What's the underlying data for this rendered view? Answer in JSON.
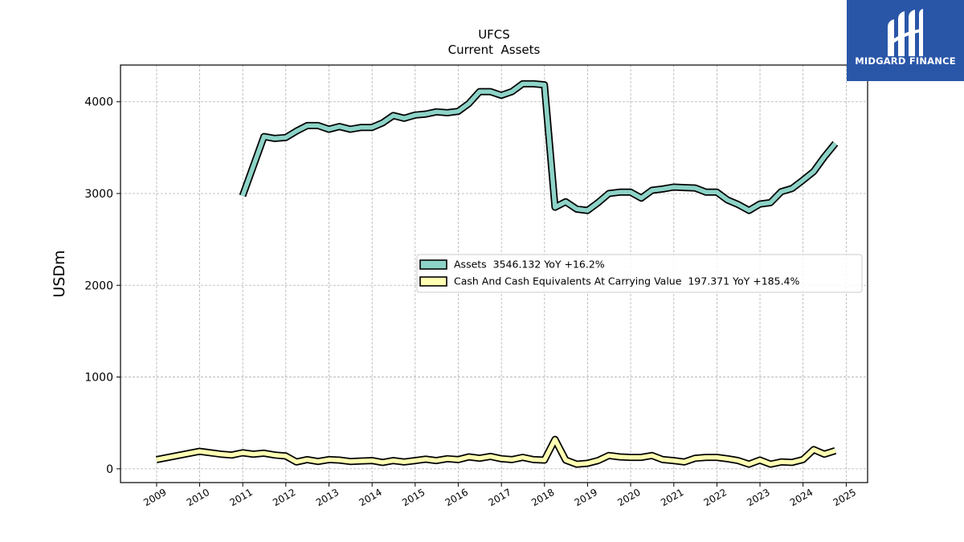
{
  "brand": {
    "name": "MIDGARD FINANCE",
    "logo_icon": "midgard-logo-icon",
    "color": "#2a56a8"
  },
  "chart_data": {
    "type": "line",
    "title": "UFCS",
    "subtitle": "Current  Assets",
    "ylabel": "USDm",
    "xlabel": "",
    "xlim": [
      "2008-03-01",
      "2025-07-01"
    ],
    "ylim": [
      -150,
      4400
    ],
    "x_ticks": [
      "2009",
      "2010",
      "2011",
      "2012",
      "2013",
      "2014",
      "2015",
      "2016",
      "2017",
      "2018",
      "2019",
      "2020",
      "2021",
      "2022",
      "2023",
      "2024",
      "2025"
    ],
    "y_ticks": [
      0,
      1000,
      2000,
      3000,
      4000
    ],
    "grid": true,
    "legend_position": "center-right",
    "series": [
      {
        "name": "Assets  3546.132 YoY +16.2%",
        "color": "#8dd3c7",
        "points": [
          [
            "2010-12-31",
            2975
          ],
          [
            "2011-06-30",
            3620
          ],
          [
            "2011-09-30",
            3600
          ],
          [
            "2011-12-31",
            3610
          ],
          [
            "2012-03-31",
            3680
          ],
          [
            "2012-06-30",
            3740
          ],
          [
            "2012-09-30",
            3740
          ],
          [
            "2012-12-31",
            3700
          ],
          [
            "2013-03-31",
            3730
          ],
          [
            "2013-06-30",
            3700
          ],
          [
            "2013-09-30",
            3720
          ],
          [
            "2013-12-31",
            3720
          ],
          [
            "2014-03-31",
            3770
          ],
          [
            "2014-06-30",
            3850
          ],
          [
            "2014-09-30",
            3820
          ],
          [
            "2014-12-31",
            3855
          ],
          [
            "2015-03-31",
            3865
          ],
          [
            "2015-06-30",
            3890
          ],
          [
            "2015-09-30",
            3880
          ],
          [
            "2015-12-31",
            3895
          ],
          [
            "2016-03-31",
            3980
          ],
          [
            "2016-06-30",
            4110
          ],
          [
            "2016-09-30",
            4110
          ],
          [
            "2016-12-31",
            4070
          ],
          [
            "2017-03-31",
            4110
          ],
          [
            "2017-06-30",
            4195
          ],
          [
            "2017-09-30",
            4195
          ],
          [
            "2017-12-31",
            4185
          ],
          [
            "2018-03-31",
            2850
          ],
          [
            "2018-06-30",
            2910
          ],
          [
            "2018-09-30",
            2830
          ],
          [
            "2018-12-31",
            2815
          ],
          [
            "2019-03-31",
            2900
          ],
          [
            "2019-06-30",
            3000
          ],
          [
            "2019-09-30",
            3015
          ],
          [
            "2019-12-31",
            3015
          ],
          [
            "2020-03-31",
            2950
          ],
          [
            "2020-06-30",
            3035
          ],
          [
            "2020-09-30",
            3050
          ],
          [
            "2020-12-31",
            3070
          ],
          [
            "2021-03-31",
            3065
          ],
          [
            "2021-06-30",
            3060
          ],
          [
            "2021-09-30",
            3015
          ],
          [
            "2021-12-31",
            3015
          ],
          [
            "2022-03-31",
            2930
          ],
          [
            "2022-06-30",
            2880
          ],
          [
            "2022-09-30",
            2815
          ],
          [
            "2022-12-31",
            2885
          ],
          [
            "2023-03-31",
            2900
          ],
          [
            "2023-06-30",
            3020
          ],
          [
            "2023-09-30",
            3055
          ],
          [
            "2023-12-31",
            3145
          ],
          [
            "2024-03-31",
            3240
          ],
          [
            "2024-06-30",
            3400
          ],
          [
            "2024-09-30",
            3546
          ]
        ]
      },
      {
        "name": "Cash And Cash Equivalents At Carrying Value  197.371 YoY +185.4%",
        "color": "#ffffb3",
        "points": [
          [
            "2008-12-31",
            100
          ],
          [
            "2009-12-31",
            190
          ],
          [
            "2010-06-30",
            160
          ],
          [
            "2010-09-30",
            150
          ],
          [
            "2010-12-31",
            175
          ],
          [
            "2011-03-31",
            160
          ],
          [
            "2011-06-30",
            170
          ],
          [
            "2011-09-30",
            150
          ],
          [
            "2011-12-31",
            140
          ],
          [
            "2012-03-31",
            75
          ],
          [
            "2012-06-30",
            100
          ],
          [
            "2012-09-30",
            80
          ],
          [
            "2012-12-31",
            100
          ],
          [
            "2013-03-31",
            95
          ],
          [
            "2013-06-30",
            80
          ],
          [
            "2013-09-30",
            85
          ],
          [
            "2013-12-31",
            90
          ],
          [
            "2014-03-31",
            70
          ],
          [
            "2014-06-30",
            90
          ],
          [
            "2014-09-30",
            75
          ],
          [
            "2014-12-31",
            90
          ],
          [
            "2015-03-31",
            105
          ],
          [
            "2015-06-30",
            90
          ],
          [
            "2015-09-30",
            110
          ],
          [
            "2015-12-31",
            100
          ],
          [
            "2016-03-31",
            130
          ],
          [
            "2016-06-30",
            115
          ],
          [
            "2016-09-30",
            135
          ],
          [
            "2016-12-31",
            110
          ],
          [
            "2017-03-31",
            100
          ],
          [
            "2017-06-30",
            125
          ],
          [
            "2017-09-30",
            100
          ],
          [
            "2017-12-31",
            95
          ],
          [
            "2018-03-31",
            320
          ],
          [
            "2018-06-30",
            95
          ],
          [
            "2018-09-30",
            50
          ],
          [
            "2018-12-31",
            60
          ],
          [
            "2019-03-31",
            90
          ],
          [
            "2019-06-30",
            145
          ],
          [
            "2019-09-30",
            130
          ],
          [
            "2019-12-31",
            125
          ],
          [
            "2020-03-31",
            125
          ],
          [
            "2020-06-30",
            145
          ],
          [
            "2020-09-30",
            100
          ],
          [
            "2020-12-31",
            90
          ],
          [
            "2021-03-31",
            75
          ],
          [
            "2021-06-30",
            115
          ],
          [
            "2021-09-30",
            125
          ],
          [
            "2021-12-31",
            125
          ],
          [
            "2022-03-31",
            110
          ],
          [
            "2022-06-30",
            90
          ],
          [
            "2022-09-30",
            50
          ],
          [
            "2022-12-31",
            95
          ],
          [
            "2023-03-31",
            50
          ],
          [
            "2023-06-30",
            75
          ],
          [
            "2023-09-30",
            70
          ],
          [
            "2023-12-31",
            100
          ],
          [
            "2024-03-31",
            210
          ],
          [
            "2024-06-30",
            160
          ],
          [
            "2024-09-30",
            197
          ]
        ]
      }
    ]
  }
}
